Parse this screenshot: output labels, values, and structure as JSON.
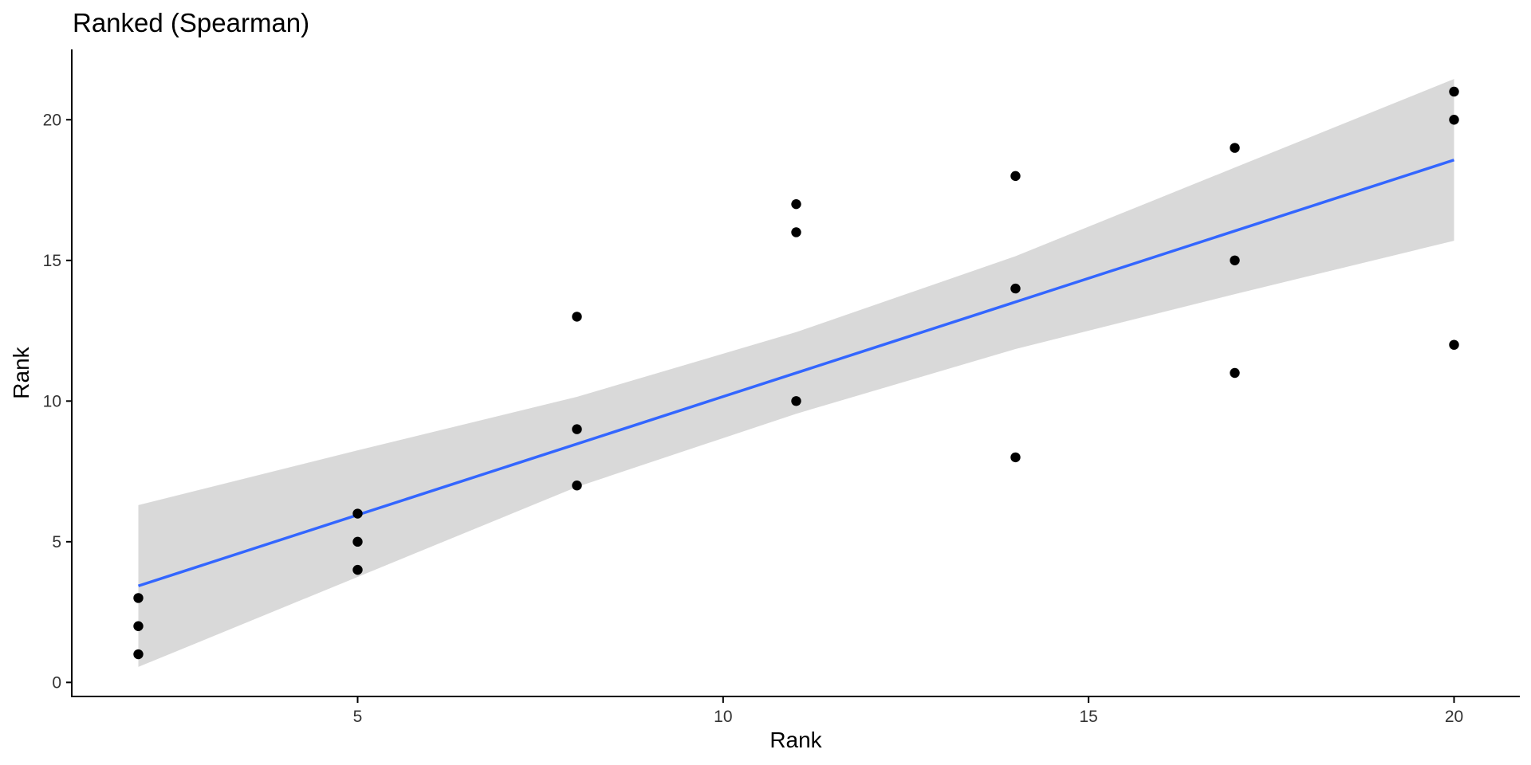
{
  "chart_data": {
    "type": "scatter",
    "title": "Ranked (Spearman)",
    "xlabel": "Rank",
    "ylabel": "Rank",
    "xlim": [
      1.1,
      20.9
    ],
    "ylim": [
      -0.5,
      22.5
    ],
    "x_ticks": [
      5,
      10,
      15,
      20
    ],
    "y_ticks": [
      0,
      5,
      10,
      15,
      20
    ],
    "grid": false,
    "legend": "none",
    "points": [
      {
        "x": 2,
        "y": 1
      },
      {
        "x": 2,
        "y": 2
      },
      {
        "x": 2,
        "y": 3
      },
      {
        "x": 5,
        "y": 4
      },
      {
        "x": 5,
        "y": 5
      },
      {
        "x": 5,
        "y": 6
      },
      {
        "x": 8,
        "y": 7
      },
      {
        "x": 8,
        "y": 9
      },
      {
        "x": 8,
        "y": 13
      },
      {
        "x": 11,
        "y": 10
      },
      {
        "x": 11,
        "y": 16
      },
      {
        "x": 11,
        "y": 17
      },
      {
        "x": 14,
        "y": 8
      },
      {
        "x": 14,
        "y": 14
      },
      {
        "x": 14,
        "y": 18
      },
      {
        "x": 17,
        "y": 11
      },
      {
        "x": 17,
        "y": 15
      },
      {
        "x": 17,
        "y": 19
      },
      {
        "x": 20,
        "y": 12
      },
      {
        "x": 20,
        "y": 20
      },
      {
        "x": 20,
        "y": 21
      }
    ],
    "fit_line": {
      "x": [
        2,
        20
      ],
      "y": [
        3.43,
        18.57
      ],
      "color": "#3366FF"
    },
    "confidence_band": {
      "x": [
        2,
        5,
        8,
        11,
        14,
        17,
        20
      ],
      "lower": [
        0.55,
        3.75,
        6.95,
        9.55,
        11.85,
        13.8,
        15.7
      ],
      "upper": [
        6.3,
        8.25,
        10.15,
        12.45,
        15.15,
        18.3,
        21.45
      ],
      "color": "#D9D9D9"
    },
    "point_color": "#000000"
  }
}
